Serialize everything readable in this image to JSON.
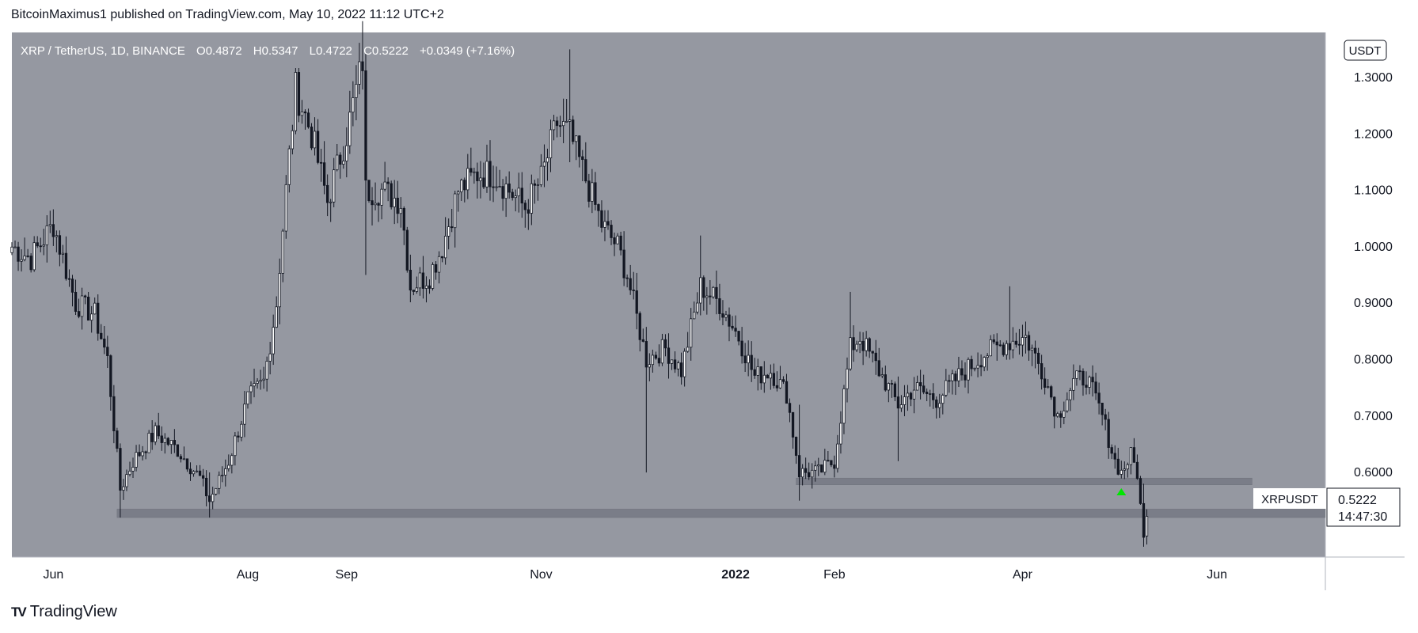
{
  "publisher_line": "BitcoinMaximus1 published on TradingView.com, May 10, 2022 11:12 UTC+2",
  "footer": {
    "logo_text": "TradingView",
    "logo_icon": "tradingview-logo-icon"
  },
  "legend": {
    "symbol": "XRP / TetherUS, 1D, BINANCE",
    "o_label": "O",
    "o_value": "0.4872",
    "h_label": "H",
    "h_value": "0.5347",
    "l_label": "L",
    "l_value": "0.4722",
    "c_label": "C",
    "c_value": "0.5222",
    "change": "+0.0349 (+7.16%)"
  },
  "price_axis": {
    "currency": "USDT",
    "ticks": [
      "1.3000",
      "1.2000",
      "1.1000",
      "1.0000",
      "0.9000",
      "0.8000",
      "0.7000",
      "0.6000"
    ],
    "last_label": "XRPUSDT",
    "last_price": "0.5222",
    "countdown": "14:47:30"
  },
  "time_axis": {
    "ticks": [
      "Jun",
      "Aug",
      "Sep",
      "Nov",
      "2022",
      "Feb",
      "Apr",
      "Jun"
    ]
  },
  "colors": {
    "pane": "#9598a1",
    "candle": "#131722",
    "support_zone": "#787b86",
    "arrow": "#00e600",
    "text": "#131722"
  },
  "chart_data": {
    "type": "candlestick",
    "title": "XRP / TetherUS, 1D, BINANCE",
    "ylim": [
      0.45,
      1.38
    ],
    "y_ticks": [
      1.3,
      1.2,
      1.1,
      1.0,
      0.9,
      0.8,
      0.7,
      0.6
    ],
    "x_ticks": [
      "Jun",
      "Aug",
      "Sep",
      "Nov",
      "2022",
      "Feb",
      "Apr",
      "Jun"
    ],
    "x_range": [
      "2021-05-19",
      "2022-07-05"
    ],
    "close_path": [
      [
        "2021-05-19",
        1.0
      ],
      [
        "2021-05-25",
        0.98
      ],
      [
        "2021-06-01",
        1.04
      ],
      [
        "2021-06-08",
        0.9
      ],
      [
        "2021-06-14",
        0.88
      ],
      [
        "2021-06-18",
        0.8
      ],
      [
        "2021-06-22",
        0.57
      ],
      [
        "2021-06-26",
        0.62
      ],
      [
        "2021-07-03",
        0.67
      ],
      [
        "2021-07-10",
        0.64
      ],
      [
        "2021-07-17",
        0.59
      ],
      [
        "2021-07-20",
        0.55
      ],
      [
        "2021-07-26",
        0.62
      ],
      [
        "2021-08-01",
        0.73
      ],
      [
        "2021-08-06",
        0.76
      ],
      [
        "2021-08-10",
        0.9
      ],
      [
        "2021-08-13",
        1.1
      ],
      [
        "2021-08-16",
        1.28
      ],
      [
        "2021-08-21",
        1.2
      ],
      [
        "2021-08-26",
        1.08
      ],
      [
        "2021-09-01",
        1.2
      ],
      [
        "2021-09-06",
        1.33
      ],
      [
        "2021-09-07",
        1.1
      ],
      [
        "2021-09-12",
        1.1
      ],
      [
        "2021-09-18",
        1.08
      ],
      [
        "2021-09-21",
        0.93
      ],
      [
        "2021-09-27",
        0.95
      ],
      [
        "2021-10-01",
        1.0
      ],
      [
        "2021-10-06",
        1.1
      ],
      [
        "2021-10-12",
        1.13
      ],
      [
        "2021-10-17",
        1.13
      ],
      [
        "2021-10-22",
        1.1
      ],
      [
        "2021-10-27",
        1.07
      ],
      [
        "2021-11-01",
        1.12
      ],
      [
        "2021-11-06",
        1.22
      ],
      [
        "2021-11-10",
        1.2
      ],
      [
        "2021-11-15",
        1.12
      ],
      [
        "2021-11-20",
        1.04
      ],
      [
        "2021-11-25",
        1.0
      ],
      [
        "2021-11-28",
        0.95
      ],
      [
        "2021-12-04",
        0.8
      ],
      [
        "2021-12-10",
        0.82
      ],
      [
        "2021-12-15",
        0.78
      ],
      [
        "2021-12-21",
        0.93
      ],
      [
        "2021-12-27",
        0.9
      ],
      [
        "2022-01-02",
        0.84
      ],
      [
        "2022-01-07",
        0.77
      ],
      [
        "2022-01-12",
        0.78
      ],
      [
        "2022-01-17",
        0.74
      ],
      [
        "2022-01-21",
        0.6
      ],
      [
        "2022-01-27",
        0.6
      ],
      [
        "2022-02-01",
        0.62
      ],
      [
        "2022-02-06",
        0.82
      ],
      [
        "2022-02-09",
        0.84
      ],
      [
        "2022-02-15",
        0.78
      ],
      [
        "2022-02-21",
        0.72
      ],
      [
        "2022-02-26",
        0.75
      ],
      [
        "2022-03-05",
        0.73
      ],
      [
        "2022-03-12",
        0.77
      ],
      [
        "2022-03-20",
        0.81
      ],
      [
        "2022-03-27",
        0.83
      ],
      [
        "2022-04-02",
        0.84
      ],
      [
        "2022-04-08",
        0.77
      ],
      [
        "2022-04-12",
        0.7
      ],
      [
        "2022-04-17",
        0.76
      ],
      [
        "2022-04-21",
        0.77
      ],
      [
        "2022-04-26",
        0.7
      ],
      [
        "2022-04-30",
        0.62
      ],
      [
        "2022-05-02",
        0.6
      ],
      [
        "2022-05-05",
        0.63
      ],
      [
        "2022-05-07",
        0.6
      ],
      [
        "2022-05-09",
        0.48
      ],
      [
        "2022-05-10",
        0.5222
      ]
    ],
    "candle_shadows": [
      [
        "2021-09-06",
        1.4,
        1.32
      ],
      [
        "2021-09-07",
        1.2,
        0.95
      ],
      [
        "2021-11-10",
        1.35,
        1.15
      ],
      [
        "2021-12-04",
        0.85,
        0.6
      ],
      [
        "2021-12-21",
        1.02,
        0.88
      ],
      [
        "2022-03-28",
        0.93,
        0.8
      ],
      [
        "2022-02-06",
        0.92,
        0.78
      ],
      [
        "2022-02-21",
        0.77,
        0.62
      ],
      [
        "2022-01-21",
        0.72,
        0.55
      ],
      [
        "2021-06-22",
        0.62,
        0.52
      ],
      [
        "2021-07-20",
        0.6,
        0.52
      ],
      [
        "2022-05-09",
        0.58,
        0.47
      ]
    ],
    "last_candle": {
      "date": "2022-05-10",
      "open": 0.4872,
      "high": 0.5347,
      "low": 0.4722,
      "close": 0.5222
    },
    "zones": [
      {
        "from": "2021-06-21",
        "to": "2022-07-05",
        "low": 0.52,
        "high": 0.535
      },
      {
        "from": "2022-01-20",
        "to": "2022-06-12",
        "low": 0.578,
        "high": 0.59
      }
    ],
    "markers": [
      {
        "type": "arrow-up",
        "date": "2022-05-02",
        "value": 0.565
      }
    ]
  }
}
